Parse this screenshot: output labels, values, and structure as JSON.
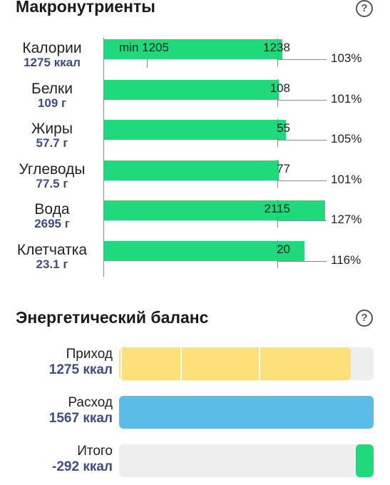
{
  "macros": {
    "title": "Макронутриенты",
    "help_glyph": "?",
    "calories_min_text": "min 1205",
    "rows": [
      {
        "name": "Калории",
        "value": "1275 ккал",
        "target": "1238",
        "target_num": 1238,
        "actual_num": 1275,
        "percent": "103%"
      },
      {
        "name": "Белки",
        "value": "109 г",
        "target": "108",
        "target_num": 108,
        "actual_num": 109,
        "percent": "101%"
      },
      {
        "name": "Жиры",
        "value": "57.7 г",
        "target": "55",
        "target_num": 55,
        "actual_num": 57.7,
        "percent": "105%"
      },
      {
        "name": "Углеводы",
        "value": "77.5 г",
        "target": "77",
        "target_num": 77,
        "actual_num": 77.5,
        "percent": "101%"
      },
      {
        "name": "Вода",
        "value": "2695 г",
        "target": "2115",
        "target_num": 2115,
        "actual_num": 2695,
        "percent": "127%"
      },
      {
        "name": "Клетчатка",
        "value": "23.1 г",
        "target": "20",
        "target_num": 20,
        "actual_num": 23.1,
        "percent": "116%"
      }
    ]
  },
  "energy": {
    "title": "Энергетический баланс",
    "help_glyph": "?",
    "income": {
      "label": "Приход",
      "value": "1275 ккал",
      "kcal": 1275,
      "color": "#fde07a"
    },
    "expense": {
      "label": "Расход",
      "value": "1567 ккал",
      "kcal": 1567,
      "color": "#5bbce8"
    },
    "total": {
      "label": "Итого",
      "value": "-292 ккал",
      "kcal": -292,
      "color": "#1fd97a"
    }
  }
}
